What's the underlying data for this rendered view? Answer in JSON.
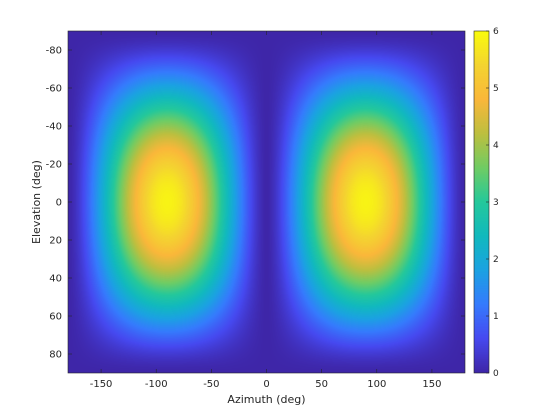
{
  "chart_data": {
    "type": "heatmap",
    "title": "",
    "xlabel": "Azimuth (deg)",
    "ylabel": "Elevation (deg)",
    "xlim": [
      -180,
      180
    ],
    "ylim": [
      -90,
      90
    ],
    "y_direction": "reversed",
    "x_ticks": [
      -150,
      -100,
      -50,
      0,
      50,
      100,
      150
    ],
    "y_ticks": [
      -80,
      -60,
      -40,
      -20,
      0,
      20,
      40,
      60,
      80
    ],
    "colorbar": {
      "min": 0,
      "max": 6,
      "ticks": [
        0,
        1,
        2,
        3,
        4,
        5,
        6
      ],
      "colormap": "parula"
    },
    "peaks": [
      {
        "azimuth": -90,
        "elevation": 0,
        "value": 6
      },
      {
        "azimuth": 90,
        "elevation": 0,
        "value": 6
      }
    ],
    "nulls": [
      {
        "azimuth": 0,
        "value": 0
      },
      {
        "azimuth": -180,
        "value": 0
      },
      {
        "azimuth": 180,
        "value": 0
      }
    ],
    "grid": false
  }
}
